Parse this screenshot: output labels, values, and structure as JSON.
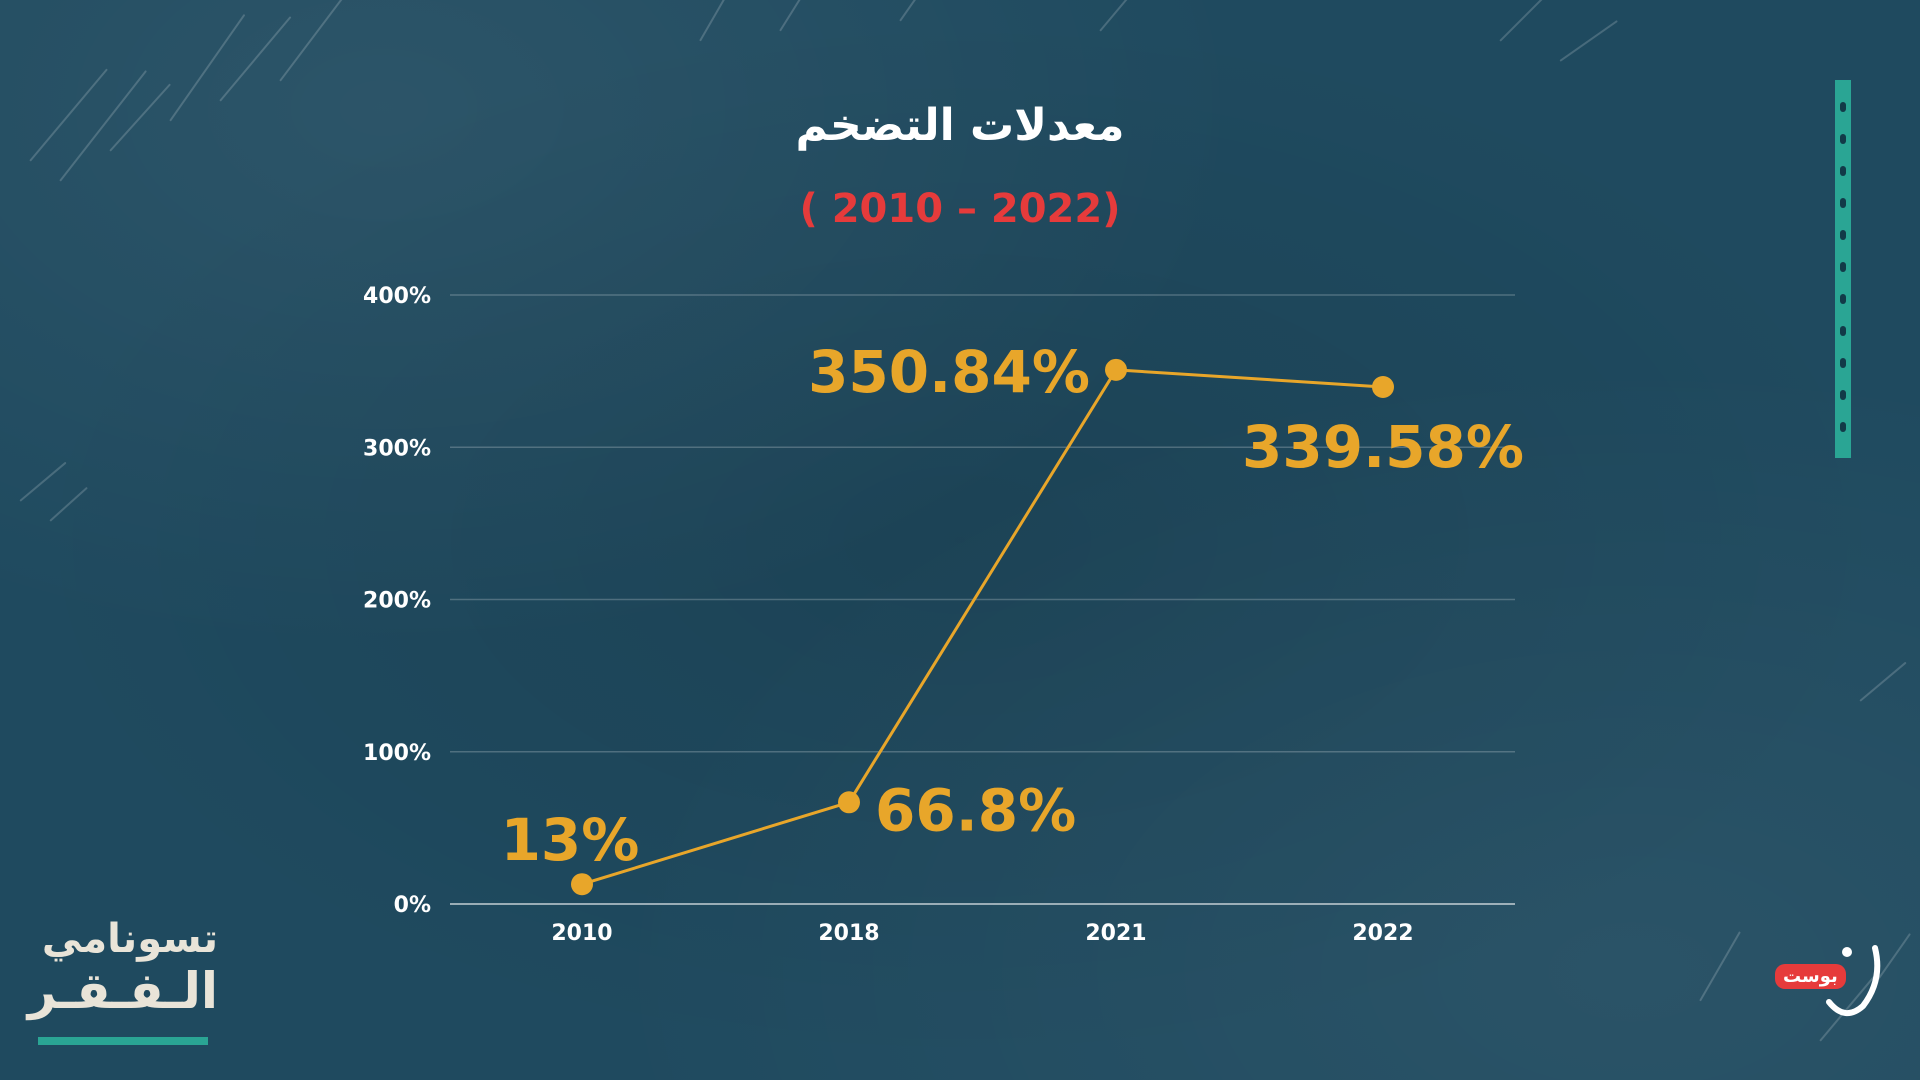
{
  "title": "معدلات التضخم",
  "subtitle": "( 2010 – 2022)",
  "logo_left": {
    "line1": "تسونامي",
    "line2": "الـفـقـر"
  },
  "logo_right": {
    "badge": "بوست",
    "mark": "ن"
  },
  "colors": {
    "background": "#1f4a5f",
    "line": "#e8a62a",
    "subtitle": "#e63b3b",
    "accent": "#2aa594"
  },
  "chart_data": {
    "type": "line",
    "title": "معدلات التضخم",
    "subtitle": "( 2010 – 2022)",
    "categories": [
      "2010",
      "2018",
      "2021",
      "2022"
    ],
    "series": [
      {
        "values": [
          13,
          66.8,
          350.84,
          339.58
        ],
        "labels": [
          "13%",
          "66.8%",
          "350.84%",
          "339.58%"
        ]
      }
    ],
    "yticks": [
      {
        "value": 0,
        "label": "0%"
      },
      {
        "value": 100,
        "label": "100%"
      },
      {
        "value": 200,
        "label": "200%"
      },
      {
        "value": 300,
        "label": "300%"
      },
      {
        "value": 400,
        "label": "400%"
      }
    ],
    "ylim": [
      0,
      400
    ],
    "grid": true,
    "legend": "none"
  }
}
